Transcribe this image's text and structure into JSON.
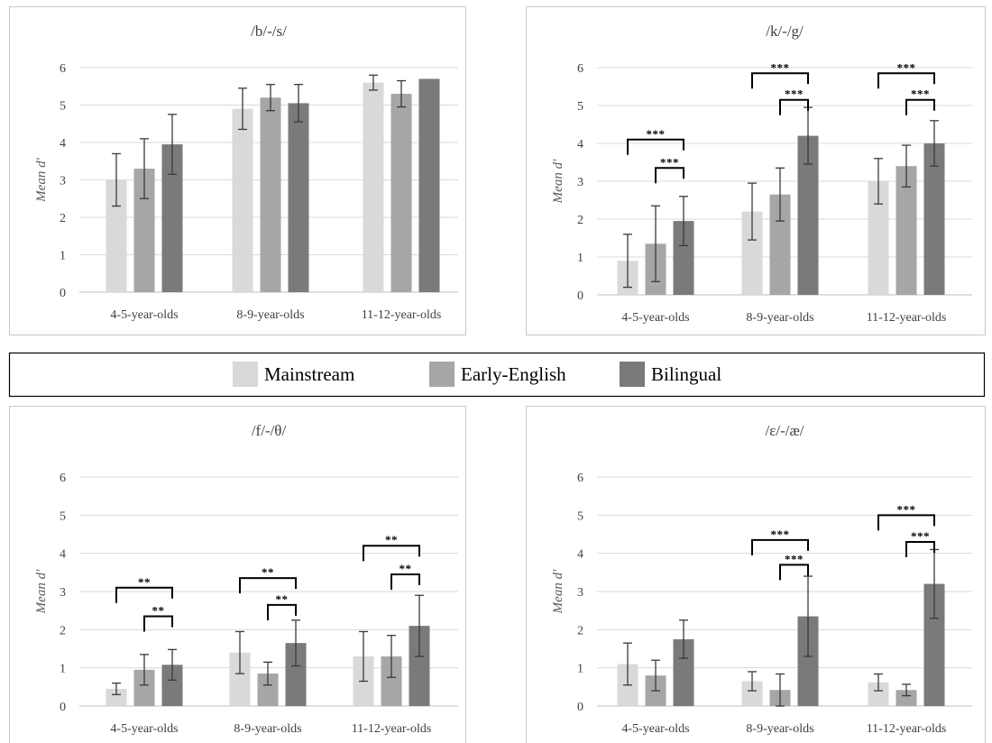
{
  "legend": {
    "items": [
      {
        "label": "Mainstream",
        "color": "#d9d9d9"
      },
      {
        "label": "Early-English",
        "color": "#a6a6a6"
      },
      {
        "label": "Bilingual",
        "color": "#7a7a7a"
      }
    ],
    "placement": "center"
  },
  "chart_data": [
    {
      "type": "bar",
      "title": "/b/-/s/",
      "ylabel": "Mean d'",
      "ylim": [
        0,
        6
      ],
      "yticks": [
        0,
        1,
        2,
        3,
        4,
        5,
        6
      ],
      "grid": true,
      "categories": [
        "4-5-year-olds",
        "8-9-year-olds",
        "11-12-year-olds"
      ],
      "series": [
        {
          "values": [
            3.0,
            4.9,
            5.6
          ],
          "errors": [
            0.7,
            0.55,
            0.2
          ]
        },
        {
          "values": [
            3.3,
            5.2,
            5.3
          ],
          "errors": [
            0.8,
            0.35,
            0.35
          ]
        },
        {
          "values": [
            3.95,
            5.05,
            5.7
          ],
          "errors": [
            0.8,
            0.5,
            0.0
          ]
        }
      ],
      "annotations": []
    },
    {
      "type": "bar",
      "title": "/k/-/g/",
      "ylabel": "Mean d'",
      "ylim": [
        0,
        6
      ],
      "yticks": [
        0,
        1,
        2,
        3,
        4,
        5,
        6
      ],
      "grid": true,
      "categories": [
        "4-5-year-olds",
        "8-9-year-olds",
        "11-12-year-olds"
      ],
      "series": [
        {
          "values": [
            0.9,
            2.2,
            3.0
          ],
          "errors": [
            0.7,
            0.75,
            0.6
          ]
        },
        {
          "values": [
            1.35,
            2.65,
            3.4
          ],
          "errors": [
            1.0,
            0.7,
            0.55
          ]
        },
        {
          "values": [
            1.95,
            4.2,
            4.0
          ],
          "errors": [
            0.65,
            0.75,
            0.6
          ]
        }
      ],
      "annotations": [
        {
          "group": 0,
          "from": 0,
          "to": 2,
          "level": 4.1,
          "label": "***"
        },
        {
          "group": 0,
          "from": 1,
          "to": 2,
          "level": 3.35,
          "label": "***"
        },
        {
          "group": 1,
          "from": 0,
          "to": 2,
          "level": 5.85,
          "label": "***"
        },
        {
          "group": 1,
          "from": 1,
          "to": 2,
          "level": 5.15,
          "label": "***"
        },
        {
          "group": 2,
          "from": 0,
          "to": 2,
          "level": 5.85,
          "label": "***"
        },
        {
          "group": 2,
          "from": 1,
          "to": 2,
          "level": 5.15,
          "label": "***"
        }
      ]
    },
    {
      "type": "bar",
      "title": "/f/-/θ/",
      "ylabel": "Mean d'",
      "ylim": [
        0,
        6
      ],
      "yticks": [
        0,
        1,
        2,
        3,
        4,
        5,
        6
      ],
      "grid": true,
      "categories": [
        "4-5-year-olds",
        "8-9-year-olds",
        "11-12-year-olds"
      ],
      "series": [
        {
          "values": [
            0.45,
            1.4,
            1.3
          ],
          "errors": [
            0.15,
            0.55,
            0.65
          ]
        },
        {
          "values": [
            0.95,
            0.85,
            1.3
          ],
          "errors": [
            0.4,
            0.3,
            0.55
          ]
        },
        {
          "values": [
            1.08,
            1.65,
            2.1
          ],
          "errors": [
            0.4,
            0.6,
            0.8
          ]
        }
      ],
      "annotations": [
        {
          "group": 0,
          "from": 0,
          "to": 2,
          "level": 3.1,
          "label": "**"
        },
        {
          "group": 0,
          "from": 1,
          "to": 2,
          "level": 2.35,
          "label": "**"
        },
        {
          "group": 1,
          "from": 0,
          "to": 2,
          "level": 3.35,
          "label": "**"
        },
        {
          "group": 1,
          "from": 1,
          "to": 2,
          "level": 2.65,
          "label": "**"
        },
        {
          "group": 2,
          "from": 0,
          "to": 2,
          "level": 4.2,
          "label": "**"
        },
        {
          "group": 2,
          "from": 1,
          "to": 2,
          "level": 3.45,
          "label": "**"
        }
      ]
    },
    {
      "type": "bar",
      "title": "/ε/-/æ/",
      "ylabel": "Mean d'",
      "ylim": [
        0,
        6
      ],
      "yticks": [
        0,
        1,
        2,
        3,
        4,
        5,
        6
      ],
      "grid": true,
      "categories": [
        "4-5-year-olds",
        "8-9-year-olds",
        "11-12-year-olds"
      ],
      "series": [
        {
          "values": [
            1.1,
            0.65,
            0.62
          ],
          "errors": [
            0.55,
            0.25,
            0.22
          ]
        },
        {
          "values": [
            0.8,
            0.42,
            0.42
          ],
          "errors": [
            0.4,
            0.42,
            0.15
          ]
        },
        {
          "values": [
            1.75,
            2.35,
            3.2
          ],
          "errors": [
            0.5,
            1.05,
            0.9
          ]
        }
      ],
      "annotations": [
        {
          "group": 1,
          "from": 0,
          "to": 2,
          "level": 4.35,
          "label": "***"
        },
        {
          "group": 1,
          "from": 1,
          "to": 2,
          "level": 3.7,
          "label": "***"
        },
        {
          "group": 2,
          "from": 0,
          "to": 2,
          "level": 5.0,
          "label": "***"
        },
        {
          "group": 2,
          "from": 1,
          "to": 2,
          "level": 4.3,
          "label": "***"
        }
      ]
    }
  ]
}
